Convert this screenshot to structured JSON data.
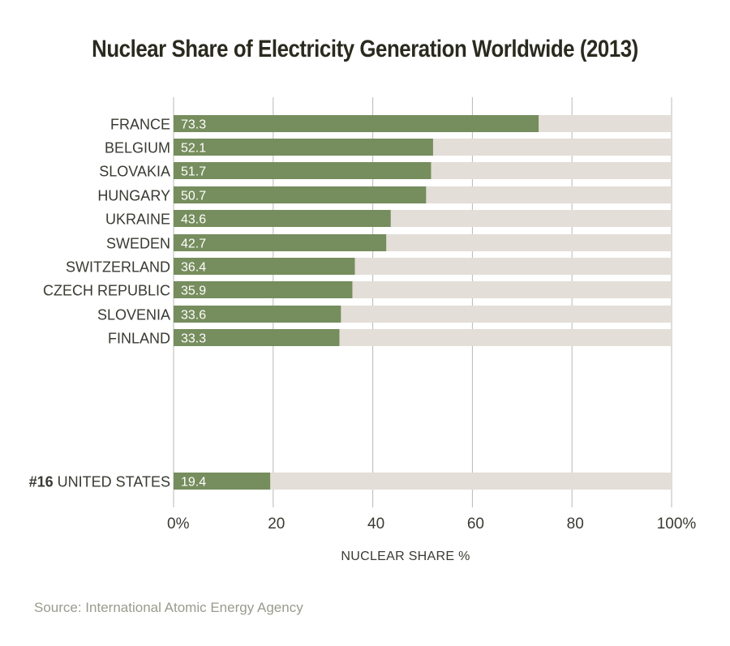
{
  "colors": {
    "bar": "#768d5d",
    "track": "#e3ded7",
    "grid": "#b8b8b3",
    "label_text": "#3a3a33",
    "value_text": "#ffffff"
  },
  "chart_data": {
    "type": "bar",
    "orientation": "horizontal",
    "title": "Nuclear Share of Electricity Generation Worldwide (2013)",
    "xlabel": "NUCLEAR SHARE %",
    "xlim": [
      0,
      100
    ],
    "x_ticks": [
      "0%",
      "20",
      "40",
      "60",
      "80",
      "100%"
    ],
    "x_tick_values": [
      0,
      20,
      40,
      60,
      80,
      100
    ],
    "grid": true,
    "categories": [
      "FRANCE",
      "BELGIUM",
      "SLOVAKIA",
      "HUNGARY",
      "UKRAINE",
      "SWEDEN",
      "SWITZERLAND",
      "CZECH REPUBLIC",
      "SLOVENIA",
      "FINLAND",
      "UNITED STATES"
    ],
    "rank_labels": [
      "",
      "",
      "",
      "",
      "",
      "",
      "",
      "",
      "",
      "",
      "#16"
    ],
    "values": [
      73.3,
      52.1,
      51.7,
      50.7,
      43.6,
      42.7,
      36.4,
      35.9,
      33.6,
      33.3,
      19.4
    ],
    "value_labels": [
      "73.3",
      "52.1",
      "51.7",
      "50.7",
      "43.6",
      "42.7",
      "36.4",
      "35.9",
      "33.6",
      "33.3",
      "19.4"
    ],
    "source": "Source: International Atomic Energy Agency"
  }
}
